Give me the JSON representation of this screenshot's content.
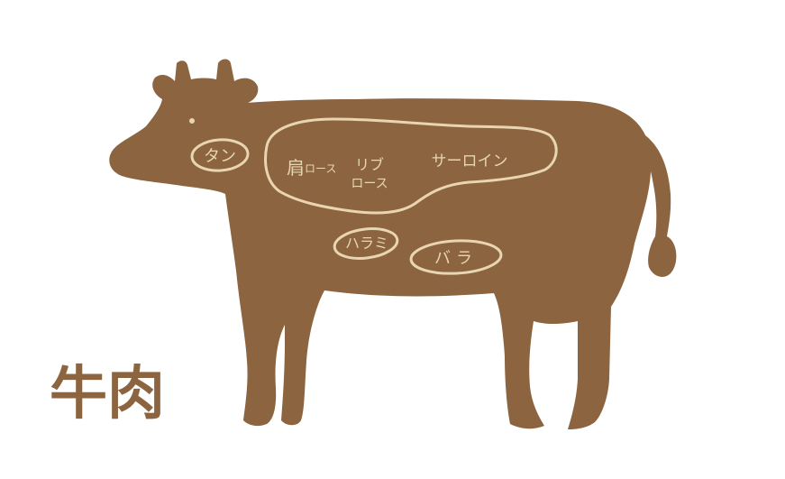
{
  "title": "牛肉",
  "colors": {
    "body": "#8C643F",
    "outline": "#E7D6B1",
    "label": "#E7D6B1",
    "background": "#FFFFFF"
  },
  "cuts": [
    {
      "id": "tan",
      "label": "タン"
    },
    {
      "id": "kata-rosu",
      "label_main": "肩",
      "label_sub": "ロース"
    },
    {
      "id": "ribu-rosu",
      "label_line1": "リブ",
      "label_line2": "ロース"
    },
    {
      "id": "sarloin",
      "label": "サーロイン"
    },
    {
      "id": "harami",
      "label": "ハラミ"
    },
    {
      "id": "bara",
      "label": "バラ"
    }
  ]
}
